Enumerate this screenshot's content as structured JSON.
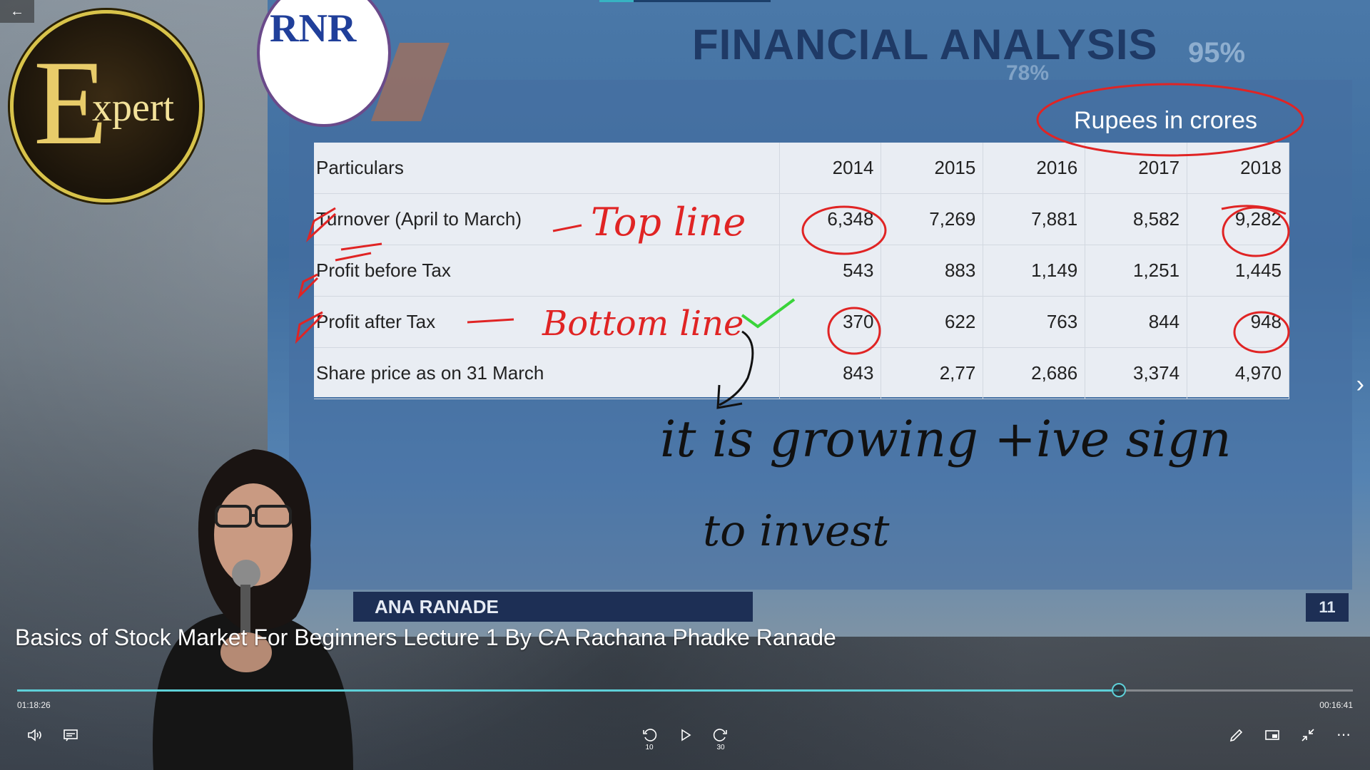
{
  "slide": {
    "title": "FINANCIAL ANALYSIS",
    "deco_percent_1": "95%",
    "deco_percent_2": "78%",
    "logo_text": "RNR",
    "unit_note": "Rupees in crores",
    "presenter_bar": "ANA RANADE",
    "slide_number": "11",
    "table": {
      "header": [
        "Particulars",
        "2014",
        "2015",
        "2016",
        "2017",
        "2018"
      ],
      "rows": [
        [
          "Turnover (April to March)",
          "6,348",
          "7,269",
          "7,881",
          "8,582",
          "9,282"
        ],
        [
          "Profit before Tax",
          "543",
          "883",
          "1,149",
          "1,251",
          "1,445"
        ],
        [
          "Profit after Tax",
          "370",
          "622",
          "763",
          "844",
          "948"
        ],
        [
          "Share price as on 31 March",
          "843",
          "2,77",
          "2,686",
          "3,374",
          "4,970"
        ]
      ]
    }
  },
  "annotations": {
    "top_line": "Top line",
    "bottom_line": "Bottom line",
    "growing": "it is growing +ive sign",
    "invest": "to invest"
  },
  "watermark": {
    "letter": "E",
    "word": "xpert"
  },
  "player": {
    "video_title": "Basics of Stock Market For Beginners  Lecture 1 By CA Rachana Phadke Ranade",
    "elapsed": "01:18:26",
    "remaining": "00:16:41",
    "progress": 0.825,
    "skip_back": "10",
    "skip_forward": "30",
    "accent": "#5ed0d8"
  }
}
